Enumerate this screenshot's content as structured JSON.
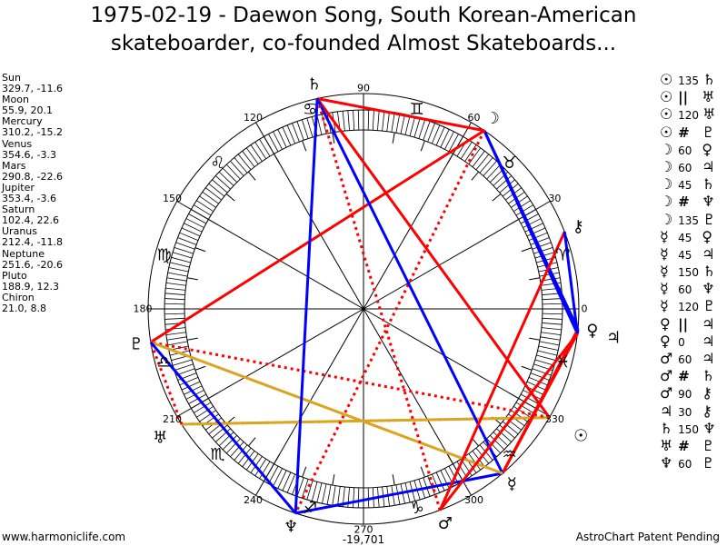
{
  "title": [
    "1975-02-19 - Daewon Song, South Korean-American",
    "skateboarder, co-founded Almost Skateboards..."
  ],
  "planets": [
    {
      "name": "Sun",
      "glyph": "☉",
      "coords": "329.7, -11.6",
      "lon": 329.7
    },
    {
      "name": "Moon",
      "glyph": "☽",
      "coords": "55.9, 20.1",
      "lon": 55.9
    },
    {
      "name": "Mercury",
      "glyph": "☿",
      "coords": "310.2, -15.2",
      "lon": 310.2
    },
    {
      "name": "Venus",
      "glyph": "♀",
      "coords": "354.6, -3.3",
      "lon": 354.6
    },
    {
      "name": "Mars",
      "glyph": "♂",
      "coords": "290.8, -22.6",
      "lon": 290.8
    },
    {
      "name": "Jupiter",
      "glyph": "♃",
      "coords": "353.4, -3.6",
      "lon": 353.4
    },
    {
      "name": "Saturn",
      "glyph": "♄",
      "coords": "102.4, 22.6",
      "lon": 102.4
    },
    {
      "name": "Uranus",
      "glyph": "♅",
      "coords": "212.4, -11.8",
      "lon": 212.4
    },
    {
      "name": "Neptune",
      "glyph": "♆",
      "coords": "251.6, -20.6",
      "lon": 251.6
    },
    {
      "name": "Pluto",
      "glyph": "♇",
      "coords": "188.9, 12.3",
      "lon": 188.9
    },
    {
      "name": "Chiron",
      "glyph": "⚷",
      "coords": "21.0, 8.8",
      "lon": 21.0
    }
  ],
  "signs": [
    "♈",
    "♉",
    "♊",
    "♋",
    "♌",
    "♍",
    "♎",
    "♏",
    "♐",
    "♑",
    "♒",
    "♓"
  ],
  "degree_labels": [
    "0",
    "30",
    "60",
    "90",
    "120",
    "150",
    "180",
    "210",
    "240",
    "270",
    "300",
    "330"
  ],
  "aspects": [
    {
      "p1": "Sun",
      "a": "135",
      "p2": "Saturn",
      "color": "#ff0000",
      "style": "solid"
    },
    {
      "p1": "Sun",
      "a": "||",
      "p2": "Uranus",
      "color": "#daa520",
      "style": "dotted"
    },
    {
      "p1": "Sun",
      "a": "120",
      "p2": "Uranus",
      "color": "#daa520",
      "style": "solid"
    },
    {
      "p1": "Sun",
      "a": "#",
      "p2": "Pluto",
      "color": "#ff0000",
      "style": "dotted"
    },
    {
      "p1": "Moon",
      "a": "60",
      "p2": "Venus",
      "color": "#0000ff",
      "style": "solid"
    },
    {
      "p1": "Moon",
      "a": "60",
      "p2": "Jupiter",
      "color": "#0000ff",
      "style": "solid"
    },
    {
      "p1": "Moon",
      "a": "45",
      "p2": "Saturn",
      "color": "#ff0000",
      "style": "solid"
    },
    {
      "p1": "Moon",
      "a": "#",
      "p2": "Neptune",
      "color": "#ff0000",
      "style": "dotted"
    },
    {
      "p1": "Moon",
      "a": "135",
      "p2": "Pluto",
      "color": "#ff0000",
      "style": "solid"
    },
    {
      "p1": "Mercury",
      "a": "45",
      "p2": "Venus",
      "color": "#ff0000",
      "style": "solid"
    },
    {
      "p1": "Mercury",
      "a": "45",
      "p2": "Jupiter",
      "color": "#ff0000",
      "style": "solid"
    },
    {
      "p1": "Mercury",
      "a": "150",
      "p2": "Saturn",
      "color": "#0000ff",
      "style": "solid"
    },
    {
      "p1": "Mercury",
      "a": "60",
      "p2": "Neptune",
      "color": "#0000ff",
      "style": "solid"
    },
    {
      "p1": "Mercury",
      "a": "120",
      "p2": "Pluto",
      "color": "#daa520",
      "style": "solid"
    },
    {
      "p1": "Venus",
      "a": "||",
      "p2": "Jupiter",
      "color": "#daa520",
      "style": "dotted"
    },
    {
      "p1": "Venus",
      "a": "0",
      "p2": "Jupiter",
      "color": "#0000ff",
      "style": "solid"
    },
    {
      "p1": "Mars",
      "a": "60",
      "p2": "Jupiter",
      "color": "#ff0000",
      "style": "solid"
    },
    {
      "p1": "Mars",
      "a": "#",
      "p2": "Saturn",
      "color": "#ff0000",
      "style": "dotted"
    },
    {
      "p1": "Mars",
      "a": "90",
      "p2": "Chiron",
      "color": "#ff0000",
      "style": "solid"
    },
    {
      "p1": "Jupiter",
      "a": "30",
      "p2": "Chiron",
      "color": "#0000ff",
      "style": "solid"
    },
    {
      "p1": "Saturn",
      "a": "150",
      "p2": "Neptune",
      "color": "#0000ff",
      "style": "solid"
    },
    {
      "p1": "Uranus",
      "a": "#",
      "p2": "Pluto",
      "color": "#ff0000",
      "style": "dotted"
    },
    {
      "p1": "Neptune",
      "a": "60",
      "p2": "Pluto",
      "color": "#0000ff",
      "style": "solid"
    }
  ],
  "footer": {
    "site": "www.harmoniclife.com",
    "count": "-19,701",
    "patent": "AstroChart Patent Pending"
  }
}
